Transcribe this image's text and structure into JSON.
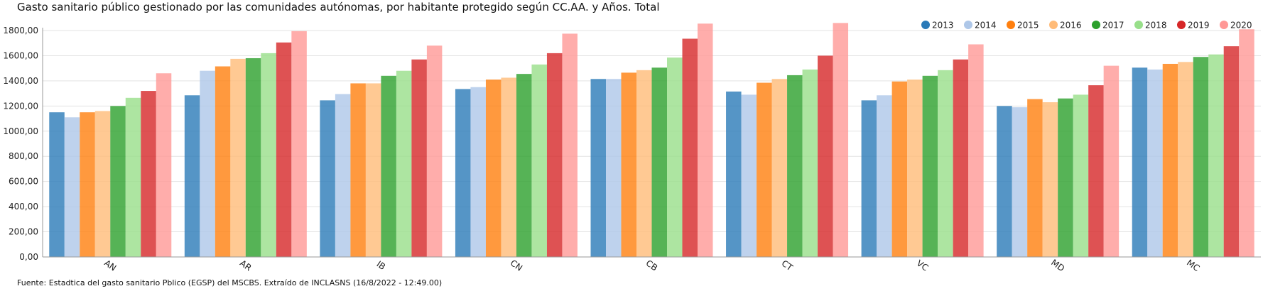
{
  "title": "Gasto sanitario público gestionado por las comunidades autónomas, por habitante protegido según CC.AA. y Años. Total",
  "source": "Fuente: Estadtica del gasto sanitario Pblico (EGSP) del MSCBS. Extraído de INCLASNS (16/8/2022 - 12:49.00)",
  "chart_data": {
    "type": "bar",
    "categories": [
      "AN",
      "AR",
      "IB",
      "CN",
      "CB",
      "CT",
      "VC",
      "MD",
      "MC"
    ],
    "ylim": [
      0,
      1800
    ],
    "yticks": [
      "0,00",
      "200,00",
      "400,00",
      "600,00",
      "800,00",
      "1000,00",
      "1200,00",
      "1400,00",
      "1600,00",
      "1800,00"
    ],
    "grid": true,
    "legend_position": "top-right",
    "series": [
      {
        "name": "2013",
        "color": "#2a7ab8",
        "values": [
          1150,
          1285,
          1245,
          1335,
          1415,
          1315,
          1245,
          1200,
          1505
        ]
      },
      {
        "name": "2014",
        "color": "#aec7e8",
        "values": [
          1110,
          1480,
          1295,
          1350,
          1415,
          1290,
          1285,
          1190,
          1490
        ]
      },
      {
        "name": "2015",
        "color": "#ff7f0e",
        "values": [
          1150,
          1515,
          1380,
          1410,
          1465,
          1385,
          1395,
          1255,
          1535
        ]
      },
      {
        "name": "2016",
        "color": "#ffbb78",
        "values": [
          1160,
          1575,
          1380,
          1425,
          1485,
          1415,
          1410,
          1230,
          1550
        ]
      },
      {
        "name": "2017",
        "color": "#2ca02c",
        "values": [
          1200,
          1580,
          1440,
          1455,
          1505,
          1445,
          1440,
          1260,
          1590
        ]
      },
      {
        "name": "2018",
        "color": "#98df8a",
        "values": [
          1265,
          1620,
          1480,
          1530,
          1585,
          1490,
          1485,
          1290,
          1610
        ]
      },
      {
        "name": "2019",
        "color": "#d62728",
        "values": [
          1320,
          1705,
          1570,
          1620,
          1735,
          1600,
          1570,
          1365,
          1675
        ]
      },
      {
        "name": "2020",
        "color": "#ff9896",
        "values": [
          1460,
          1795,
          1680,
          1775,
          1855,
          1860,
          1690,
          1520,
          1810
        ]
      }
    ]
  }
}
